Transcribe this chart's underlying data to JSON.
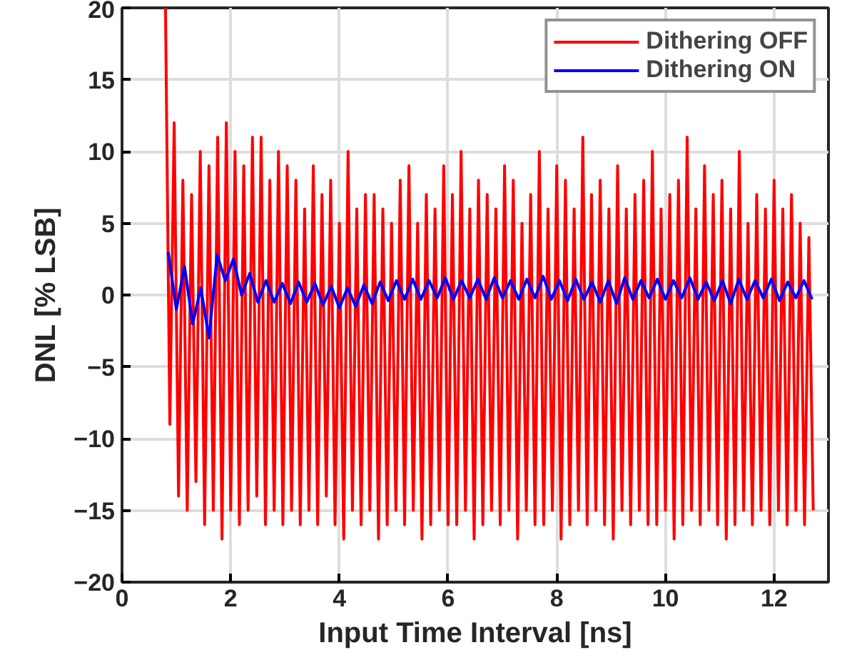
{
  "chart_data": {
    "type": "line",
    "xlabel": "Input Time Interval [ns]",
    "ylabel": "DNL [% LSB]",
    "xlim": [
      0,
      13
    ],
    "ylim": [
      -20,
      20
    ],
    "xticks": [
      0,
      2,
      4,
      6,
      8,
      10,
      12
    ],
    "yticks": [
      -20,
      -15,
      -10,
      -5,
      0,
      5,
      10,
      15,
      20
    ],
    "grid": true,
    "legend": "top right",
    "marker": "none",
    "line_style": "solid",
    "series": [
      {
        "name": "Dithering OFF",
        "color": "#ff0000",
        "x": [
          0.8,
          0.88,
          0.96,
          1.04,
          1.12,
          1.2,
          1.28,
          1.36,
          1.44,
          1.52,
          1.6,
          1.68,
          1.76,
          1.84,
          1.92,
          2,
          2.08,
          2.16,
          2.24,
          2.32,
          2.4,
          2.48,
          2.56,
          2.64,
          2.72,
          2.8,
          2.88,
          2.96,
          3.04,
          3.12,
          3.2,
          3.28,
          3.36,
          3.44,
          3.52,
          3.6,
          3.68,
          3.76,
          3.84,
          3.92,
          4,
          4.08,
          4.16,
          4.24,
          4.32,
          4.4,
          4.48,
          4.56,
          4.64,
          4.72,
          4.8,
          4.88,
          4.96,
          5.04,
          5.12,
          5.2,
          5.28,
          5.36,
          5.44,
          5.52,
          5.6,
          5.68,
          5.76,
          5.84,
          5.92,
          6,
          6.08,
          6.16,
          6.24,
          6.32,
          6.4,
          6.48,
          6.56,
          6.64,
          6.72,
          6.8,
          6.88,
          6.96,
          7.04,
          7.12,
          7.2,
          7.28,
          7.36,
          7.44,
          7.52,
          7.6,
          7.68,
          7.76,
          7.84,
          7.92,
          8,
          8.08,
          8.16,
          8.24,
          8.32,
          8.4,
          8.48,
          8.56,
          8.64,
          8.72,
          8.8,
          8.88,
          8.96,
          9.04,
          9.12,
          9.2,
          9.28,
          9.36,
          9.44,
          9.52,
          9.6,
          9.68,
          9.76,
          9.84,
          9.92,
          10,
          10.08,
          10.16,
          10.24,
          10.32,
          10.4,
          10.48,
          10.56,
          10.64,
          10.72,
          10.8,
          10.88,
          10.96,
          11.04,
          11.12,
          11.2,
          11.28,
          11.36,
          11.44,
          11.52,
          11.6,
          11.68,
          11.76,
          11.84,
          11.92,
          12,
          12.08,
          12.16,
          12.24,
          12.32,
          12.4,
          12.48,
          12.56,
          12.64,
          12.72
        ],
        "values": [
          20,
          -9,
          12,
          -14,
          8,
          -15,
          7,
          -13,
          10,
          -16,
          9,
          -15,
          11,
          -17,
          12,
          -15,
          10,
          -16,
          9,
          -15,
          11,
          -14,
          11,
          -16,
          8,
          -15,
          10,
          -16,
          9,
          -15,
          8,
          -16,
          6,
          -15,
          9,
          -16,
          7,
          -14,
          8,
          -16,
          5,
          -17,
          10,
          -15,
          6,
          -16,
          7,
          -15,
          7,
          -17,
          6,
          -16,
          5,
          -15,
          8,
          -16,
          9,
          -15,
          5,
          -17,
          7,
          -16,
          6,
          -15,
          9,
          -16,
          7,
          -16,
          10,
          -15,
          6,
          -17,
          8,
          -16,
          7,
          -15,
          6,
          -16,
          9,
          -15,
          8,
          -17,
          5,
          -15,
          7,
          -16,
          10,
          -16,
          6,
          -15,
          9,
          -17,
          8,
          -16,
          6,
          -15,
          11,
          -16,
          7,
          -15,
          8,
          -16,
          6,
          -17,
          9,
          -15,
          6,
          -16,
          7,
          -15,
          8,
          -16,
          10,
          -16,
          6,
          -15,
          7,
          -17,
          8,
          -16,
          11,
          -15,
          6,
          -16,
          9,
          -15,
          7,
          -16,
          8,
          -17,
          6,
          -16,
          10,
          -15,
          5,
          -16,
          7,
          -15,
          6,
          -16,
          8,
          -15,
          6,
          -16,
          7,
          -15,
          5,
          -16,
          4,
          -15
        ]
      },
      {
        "name": "Dithering ON",
        "color": "#0000ff",
        "x": [
          0.85,
          1,
          1.15,
          1.3,
          1.45,
          1.6,
          1.75,
          1.9,
          2.05,
          2.2,
          2.35,
          2.5,
          2.65,
          2.8,
          2.95,
          3.1,
          3.25,
          3.4,
          3.55,
          3.7,
          3.85,
          4,
          4.15,
          4.3,
          4.45,
          4.6,
          4.75,
          4.9,
          5.05,
          5.2,
          5.35,
          5.5,
          5.65,
          5.8,
          5.95,
          6.1,
          6.25,
          6.4,
          6.55,
          6.7,
          6.85,
          7,
          7.15,
          7.3,
          7.45,
          7.6,
          7.75,
          7.9,
          8.05,
          8.2,
          8.35,
          8.5,
          8.65,
          8.8,
          8.95,
          9.1,
          9.25,
          9.4,
          9.55,
          9.7,
          9.85,
          10,
          10.15,
          10.3,
          10.45,
          10.6,
          10.75,
          10.9,
          11.05,
          11.2,
          11.35,
          11.5,
          11.65,
          11.8,
          11.95,
          12.1,
          12.25,
          12.4,
          12.55,
          12.7
        ],
        "values": [
          3,
          -1,
          2,
          -2,
          0.5,
          -3,
          2.8,
          1,
          2.5,
          0,
          1.5,
          -0.5,
          1,
          -0.5,
          0.8,
          -0.6,
          0.9,
          -0.5,
          0.8,
          -0.7,
          0.6,
          -0.9,
          0.5,
          -0.8,
          0.7,
          -0.6,
          0.9,
          -0.4,
          1,
          -0.3,
          1.1,
          -0.3,
          1,
          -0.2,
          1.2,
          -0.3,
          1,
          -0.2,
          1.1,
          -0.3,
          1.2,
          -0.2,
          1,
          -0.3,
          1.1,
          -0.2,
          1.3,
          -0.3,
          1,
          -0.4,
          1.1,
          -0.3,
          0.9,
          -0.5,
          1,
          -0.6,
          1.2,
          -0.3,
          1,
          -0.2,
          1.1,
          -0.3,
          1,
          -0.2,
          1.2,
          -0.3,
          0.9,
          -0.4,
          1,
          -0.6,
          1.1,
          -0.3,
          1,
          -0.2,
          1.1,
          -0.4,
          0.9,
          -0.2,
          1,
          -0.3
        ]
      }
    ]
  }
}
